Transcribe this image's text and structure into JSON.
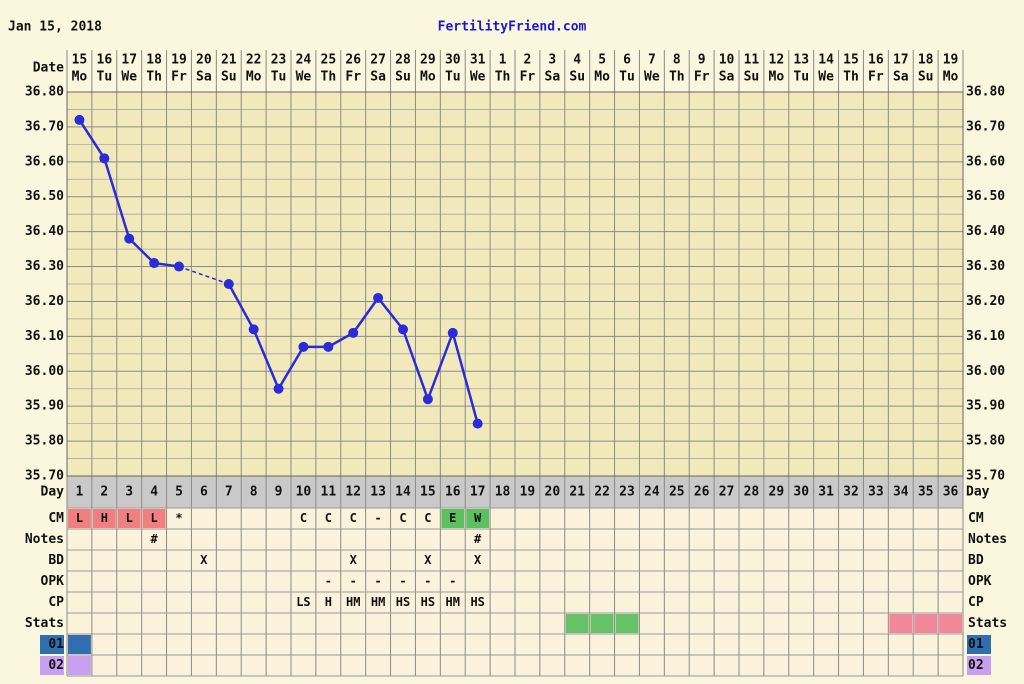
{
  "chart_data": {
    "type": "line",
    "title": "FertilityFriend.com",
    "date": "Jan 15, 2018",
    "date_label": "Date",
    "categories": [
      15,
      16,
      17,
      18,
      19,
      20,
      21,
      22,
      23,
      24,
      25,
      26,
      27,
      28,
      29,
      30,
      31,
      1,
      2,
      3,
      4,
      5,
      6,
      7,
      8,
      9,
      10,
      11,
      12,
      13,
      14,
      15,
      16,
      17,
      18,
      19
    ],
    "weekdays": [
      "Mo",
      "Tu",
      "We",
      "Th",
      "Fr",
      "Sa",
      "Su",
      "Mo",
      "Tu",
      "We",
      "Th",
      "Fr",
      "Sa",
      "Su",
      "Mo",
      "Tu",
      "We",
      "Th",
      "Fr",
      "Sa",
      "Su",
      "Mo",
      "Tu",
      "We",
      "Th",
      "Fr",
      "Sa",
      "Su",
      "Mo",
      "Tu",
      "We",
      "Th",
      "Fr",
      "Sa",
      "Su",
      "Mo"
    ],
    "values": [
      36.72,
      36.61,
      36.38,
      36.31,
      36.3,
      null,
      36.25,
      36.12,
      35.95,
      36.07,
      36.07,
      36.11,
      36.21,
      36.12,
      35.92,
      36.11,
      35.85,
      null,
      null,
      null,
      null,
      null,
      null,
      null,
      null,
      null,
      null,
      null,
      null,
      null,
      null,
      null,
      null,
      null,
      null,
      null
    ],
    "color": "#2b2bdc",
    "ylim": [
      35.7,
      36.8
    ],
    "yticks": [
      {
        "value": 35.7,
        "label": "35.70"
      },
      {
        "value": 35.8,
        "label": "35.80"
      },
      {
        "value": 35.9,
        "label": "35.90"
      },
      {
        "value": 36.0,
        "label": "36.00"
      },
      {
        "value": 36.1,
        "label": "36.10"
      },
      {
        "value": 36.2,
        "label": "36.20"
      },
      {
        "value": 36.3,
        "label": "36.30"
      },
      {
        "value": 36.4,
        "label": "36.40"
      },
      {
        "value": 36.5,
        "label": "36.50"
      },
      {
        "value": 36.6,
        "label": "36.60"
      },
      {
        "value": 36.7,
        "label": "36.70"
      },
      {
        "value": 36.8,
        "label": "36.80"
      }
    ],
    "grid": true,
    "day_label": "Day",
    "cycle_days": [
      1,
      2,
      3,
      4,
      5,
      6,
      7,
      8,
      9,
      10,
      11,
      12,
      13,
      14,
      15,
      16,
      17,
      18,
      19,
      20,
      21,
      22,
      23,
      24,
      25,
      26,
      27,
      28,
      29,
      30,
      31,
      32,
      33,
      34,
      35,
      36
    ],
    "rows": [
      {
        "label": "CM",
        "cells": [
          "L",
          "H",
          "L",
          "L",
          "*",
          null,
          null,
          null,
          null,
          "C",
          "C",
          "C",
          "-",
          "C",
          "C",
          "E",
          "W",
          null,
          null,
          null,
          null,
          null,
          null,
          null,
          null,
          null,
          null,
          null,
          null,
          null,
          null,
          null,
          null,
          null,
          null,
          null
        ],
        "fills": [
          "#f08080",
          "#f08080",
          "#f08080",
          "#f08080",
          null,
          null,
          null,
          null,
          null,
          null,
          null,
          null,
          null,
          null,
          null,
          "#5cc060",
          "#5cc060",
          null,
          null,
          null,
          null,
          null,
          null,
          null,
          null,
          null,
          null,
          null,
          null,
          null,
          null,
          null,
          null,
          null,
          null,
          null
        ]
      },
      {
        "label": "Notes",
        "cells": [
          null,
          null,
          null,
          "#",
          null,
          null,
          null,
          null,
          null,
          null,
          null,
          null,
          null,
          null,
          null,
          null,
          "#",
          null,
          null,
          null,
          null,
          null,
          null,
          null,
          null,
          null,
          null,
          null,
          null,
          null,
          null,
          null,
          null,
          null,
          null,
          null
        ]
      },
      {
        "label": "BD",
        "cells": [
          null,
          null,
          null,
          null,
          null,
          "X",
          null,
          null,
          null,
          null,
          null,
          "X",
          null,
          null,
          "X",
          null,
          "X",
          null,
          null,
          null,
          null,
          null,
          null,
          null,
          null,
          null,
          null,
          null,
          null,
          null,
          null,
          null,
          null,
          null,
          null,
          null
        ]
      },
      {
        "label": "OPK",
        "cells": [
          null,
          null,
          null,
          null,
          null,
          null,
          null,
          null,
          null,
          null,
          "-",
          "-",
          "-",
          "-",
          "-",
          "-",
          null,
          null,
          null,
          null,
          null,
          null,
          null,
          null,
          null,
          null,
          null,
          null,
          null,
          null,
          null,
          null,
          null,
          null,
          null,
          null
        ]
      },
      {
        "label": "CP",
        "cells": [
          null,
          null,
          null,
          null,
          null,
          null,
          null,
          null,
          null,
          "LS",
          "H",
          "HM",
          "HM",
          "HS",
          "HS",
          "HM",
          "HS",
          null,
          null,
          null,
          null,
          null,
          null,
          null,
          null,
          null,
          null,
          null,
          null,
          null,
          null,
          null,
          null,
          null,
          null,
          null
        ]
      },
      {
        "label": "Stats",
        "fills": [
          null,
          null,
          null,
          null,
          null,
          null,
          null,
          null,
          null,
          null,
          null,
          null,
          null,
          null,
          null,
          null,
          null,
          null,
          null,
          null,
          "#66c266",
          "#66c266",
          "#66c266",
          null,
          null,
          null,
          null,
          null,
          null,
          null,
          null,
          null,
          null,
          "#f0889a",
          "#f0889a",
          "#f0889a"
        ]
      },
      {
        "label": "01",
        "label_color": "#2f6fb0",
        "fills": [
          "#2f6fb0",
          null,
          null,
          null,
          null,
          null,
          null,
          null,
          null,
          null,
          null,
          null,
          null,
          null,
          null,
          null,
          null,
          null,
          null,
          null,
          null,
          null,
          null,
          null,
          null,
          null,
          null,
          null,
          null,
          null,
          null,
          null,
          null,
          null,
          null,
          null
        ]
      },
      {
        "label": "02",
        "label_color": "#c9a0f0",
        "fills": [
          "#c9a0f0",
          null,
          null,
          null,
          null,
          null,
          null,
          null,
          null,
          null,
          null,
          null,
          null,
          null,
          null,
          null,
          null,
          null,
          null,
          null,
          null,
          null,
          null,
          null,
          null,
          null,
          null,
          null,
          null,
          null,
          null,
          null,
          null,
          null,
          null,
          null
        ]
      }
    ]
  }
}
